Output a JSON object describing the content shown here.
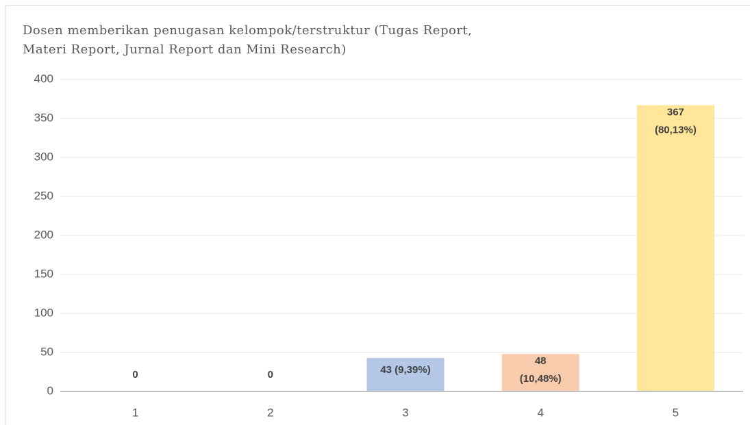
{
  "chart_data": {
    "type": "bar",
    "title": [
      "Dosen memberikan penugasan kelompok/terstruktur (Tugas Report,",
      "Materi Report, Jurnal Report dan Mini Research)"
    ],
    "categories": [
      "1",
      "2",
      "3",
      "4",
      "5"
    ],
    "values": [
      0,
      0,
      43,
      48,
      367
    ],
    "value_labels": [
      "0",
      "0",
      "43 (9,39%)",
      "48 (10,48%)",
      "367 (80,13%)"
    ],
    "colors": [
      "#8faadc",
      "#c9c9c9",
      "#b4c7e7",
      "#f8cbad",
      "#ffe699"
    ],
    "ylim": [
      0,
      400
    ],
    "yticks": [
      0,
      50,
      100,
      150,
      200,
      250,
      300,
      350,
      400
    ],
    "grid": true
  }
}
